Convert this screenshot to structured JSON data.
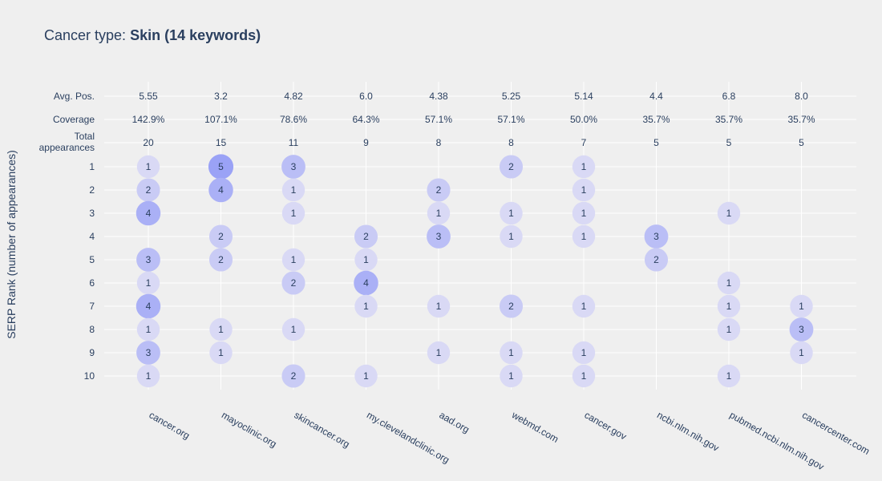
{
  "chart_data": {
    "type": "scatter",
    "title_prefix": "Cancer type: ",
    "title_bold": "Skin (14 keywords)",
    "ylabel": "SERP Rank (number of appearances)",
    "xlabel": "",
    "grid": true,
    "categories": [
      "cancer.org",
      "mayoclinic.org",
      "skincancer.org",
      "my.clevelandclinic.org",
      "aad.org",
      "webmd.com",
      "cancer.gov",
      "ncbi.nlm.nih.gov",
      "pubmed.ncbi.nlm.nih.gov",
      "cancercenter.com"
    ],
    "summary_rows": [
      {
        "label": "Avg. Pos.",
        "values": [
          "5.55",
          "3.2",
          "4.82",
          "6.0",
          "4.38",
          "5.25",
          "5.14",
          "4.4",
          "6.8",
          "8.0"
        ]
      },
      {
        "label": "Coverage",
        "values": [
          "142.9%",
          "107.1%",
          "78.6%",
          "64.3%",
          "57.1%",
          "57.1%",
          "50.0%",
          "35.7%",
          "35.7%",
          "35.7%"
        ]
      },
      {
        "label": "Total appearances",
        "label_lines": [
          "Total",
          "appearances"
        ],
        "values": [
          "20",
          "15",
          "11",
          "9",
          "8",
          "8",
          "7",
          "5",
          "5",
          "5"
        ]
      }
    ],
    "rank_labels": [
      "1",
      "2",
      "3",
      "4",
      "5",
      "6",
      "7",
      "8",
      "9",
      "10"
    ],
    "points": [
      {
        "domain": "cancer.org",
        "rank": 1,
        "count": 1
      },
      {
        "domain": "cancer.org",
        "rank": 2,
        "count": 2
      },
      {
        "domain": "cancer.org",
        "rank": 3,
        "count": 4
      },
      {
        "domain": "cancer.org",
        "rank": 5,
        "count": 3
      },
      {
        "domain": "cancer.org",
        "rank": 6,
        "count": 1
      },
      {
        "domain": "cancer.org",
        "rank": 7,
        "count": 4
      },
      {
        "domain": "cancer.org",
        "rank": 8,
        "count": 1
      },
      {
        "domain": "cancer.org",
        "rank": 9,
        "count": 3
      },
      {
        "domain": "cancer.org",
        "rank": 10,
        "count": 1
      },
      {
        "domain": "mayoclinic.org",
        "rank": 1,
        "count": 5
      },
      {
        "domain": "mayoclinic.org",
        "rank": 2,
        "count": 4
      },
      {
        "domain": "mayoclinic.org",
        "rank": 4,
        "count": 2
      },
      {
        "domain": "mayoclinic.org",
        "rank": 5,
        "count": 2
      },
      {
        "domain": "mayoclinic.org",
        "rank": 8,
        "count": 1
      },
      {
        "domain": "mayoclinic.org",
        "rank": 9,
        "count": 1
      },
      {
        "domain": "skincancer.org",
        "rank": 1,
        "count": 3
      },
      {
        "domain": "skincancer.org",
        "rank": 2,
        "count": 1
      },
      {
        "domain": "skincancer.org",
        "rank": 3,
        "count": 1
      },
      {
        "domain": "skincancer.org",
        "rank": 5,
        "count": 1
      },
      {
        "domain": "skincancer.org",
        "rank": 6,
        "count": 2
      },
      {
        "domain": "skincancer.org",
        "rank": 8,
        "count": 1
      },
      {
        "domain": "skincancer.org",
        "rank": 10,
        "count": 2
      },
      {
        "domain": "my.clevelandclinic.org",
        "rank": 4,
        "count": 2
      },
      {
        "domain": "my.clevelandclinic.org",
        "rank": 5,
        "count": 1
      },
      {
        "domain": "my.clevelandclinic.org",
        "rank": 6,
        "count": 4
      },
      {
        "domain": "my.clevelandclinic.org",
        "rank": 7,
        "count": 1
      },
      {
        "domain": "my.clevelandclinic.org",
        "rank": 10,
        "count": 1
      },
      {
        "domain": "aad.org",
        "rank": 2,
        "count": 2
      },
      {
        "domain": "aad.org",
        "rank": 3,
        "count": 1
      },
      {
        "domain": "aad.org",
        "rank": 4,
        "count": 3
      },
      {
        "domain": "aad.org",
        "rank": 7,
        "count": 1
      },
      {
        "domain": "aad.org",
        "rank": 9,
        "count": 1
      },
      {
        "domain": "webmd.com",
        "rank": 1,
        "count": 2
      },
      {
        "domain": "webmd.com",
        "rank": 3,
        "count": 1
      },
      {
        "domain": "webmd.com",
        "rank": 4,
        "count": 1
      },
      {
        "domain": "webmd.com",
        "rank": 7,
        "count": 2
      },
      {
        "domain": "webmd.com",
        "rank": 9,
        "count": 1
      },
      {
        "domain": "webmd.com",
        "rank": 10,
        "count": 1
      },
      {
        "domain": "cancer.gov",
        "rank": 1,
        "count": 1
      },
      {
        "domain": "cancer.gov",
        "rank": 2,
        "count": 1
      },
      {
        "domain": "cancer.gov",
        "rank": 3,
        "count": 1
      },
      {
        "domain": "cancer.gov",
        "rank": 4,
        "count": 1
      },
      {
        "domain": "cancer.gov",
        "rank": 7,
        "count": 1
      },
      {
        "domain": "cancer.gov",
        "rank": 9,
        "count": 1
      },
      {
        "domain": "cancer.gov",
        "rank": 10,
        "count": 1
      },
      {
        "domain": "ncbi.nlm.nih.gov",
        "rank": 4,
        "count": 3
      },
      {
        "domain": "ncbi.nlm.nih.gov",
        "rank": 5,
        "count": 2
      },
      {
        "domain": "pubmed.ncbi.nlm.nih.gov",
        "rank": 3,
        "count": 1
      },
      {
        "domain": "pubmed.ncbi.nlm.nih.gov",
        "rank": 6,
        "count": 1
      },
      {
        "domain": "pubmed.ncbi.nlm.nih.gov",
        "rank": 7,
        "count": 1
      },
      {
        "domain": "pubmed.ncbi.nlm.nih.gov",
        "rank": 8,
        "count": 1
      },
      {
        "domain": "pubmed.ncbi.nlm.nih.gov",
        "rank": 10,
        "count": 1
      },
      {
        "domain": "cancercenter.com",
        "rank": 7,
        "count": 1
      },
      {
        "domain": "cancercenter.com",
        "rank": 8,
        "count": 3
      },
      {
        "domain": "cancercenter.com",
        "rank": 9,
        "count": 1
      }
    ],
    "colors": {
      "background": "#efefef",
      "grid": "#ffffff",
      "text": "#2a3f5f",
      "bubble_low": "#d9d9f5",
      "bubble_high": "#9aa2f6"
    }
  }
}
